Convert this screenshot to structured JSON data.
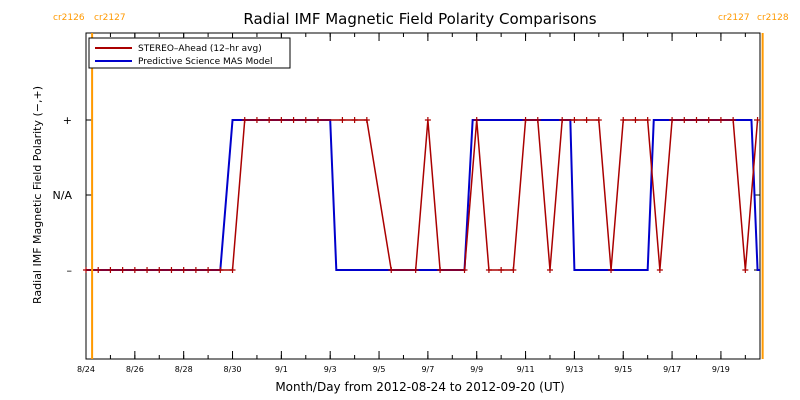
{
  "chart_data": {
    "type": "line",
    "title": "Radial IMF Magnetic Field Polarity Comparisons",
    "xlabel": "Month/Day from 2012-08-24 to 2012-09-20 (UT)",
    "ylabel": "Radial IMF Magnetic Field Polarity (−,+)",
    "xlim": [
      "2012-08-24",
      "2012-09-20"
    ],
    "ylim": [
      -2,
      2
    ],
    "x_tick_labels": [
      {
        "x": "2012-08-24",
        "label": "8/24"
      },
      {
        "x": "2012-08-26",
        "label": "8/26"
      },
      {
        "x": "2012-08-28",
        "label": "8/28"
      },
      {
        "x": "2012-08-30",
        "label": "8/30"
      },
      {
        "x": "2012-09-01",
        "label": "9/1"
      },
      {
        "x": "2012-09-03",
        "label": "9/3"
      },
      {
        "x": "2012-09-05",
        "label": "9/5"
      },
      {
        "x": "2012-09-07",
        "label": "9/7"
      },
      {
        "x": "2012-09-09",
        "label": "9/9"
      },
      {
        "x": "2012-09-11",
        "label": "9/11"
      },
      {
        "x": "2012-09-13",
        "label": "9/13"
      },
      {
        "x": "2012-09-15",
        "label": "9/15"
      },
      {
        "x": "2012-09-17",
        "label": "9/17"
      },
      {
        "x": "2012-09-19",
        "label": "9/19"
      }
    ],
    "y_tick_labels": [
      {
        "y": 1,
        "label": "+"
      },
      {
        "y": 0,
        "label": "N/A"
      },
      {
        "y": -1,
        "label": "–"
      }
    ],
    "legend_position": "top-left",
    "carrington_markers": [
      {
        "x": "2012-08-24T06:00",
        "left_label": "cr2126",
        "right_label": "cr2127",
        "color": "#ff9900"
      },
      {
        "x": "2012-09-20T17:00",
        "left_label": "cr2127",
        "right_label": "cr2128",
        "color": "#ff9900"
      }
    ],
    "series": [
      {
        "name": "STEREO–Ahead (12–hr avg)",
        "color": "#aa0000",
        "markers": "plus",
        "points": [
          [
            "2012-08-24T00:00",
            -1
          ],
          [
            "2012-08-24T12:00",
            -1
          ],
          [
            "2012-08-25T00:00",
            -1
          ],
          [
            "2012-08-25T12:00",
            -1
          ],
          [
            "2012-08-26T00:00",
            -1
          ],
          [
            "2012-08-26T12:00",
            -1
          ],
          [
            "2012-08-27T00:00",
            -1
          ],
          [
            "2012-08-27T12:00",
            -1
          ],
          [
            "2012-08-28T00:00",
            -1
          ],
          [
            "2012-08-28T12:00",
            -1
          ],
          [
            "2012-08-29T00:00",
            -1
          ],
          [
            "2012-08-29T12:00",
            -1
          ],
          [
            "2012-08-30T00:00",
            -1
          ],
          [
            "2012-08-30T12:00",
            1
          ],
          [
            "2012-08-31T00:00",
            1
          ],
          [
            "2012-08-31T12:00",
            1
          ],
          [
            "2012-09-01T00:00",
            1
          ],
          [
            "2012-09-01T12:00",
            1
          ],
          [
            "2012-09-02T00:00",
            1
          ],
          [
            "2012-09-02T12:00",
            1
          ],
          [
            "2012-09-03T12:00",
            1
          ],
          [
            "2012-09-04T00:00",
            1
          ],
          [
            "2012-09-04T12:00",
            1
          ],
          [
            "2012-09-05T12:00",
            -1
          ],
          [
            "2012-09-06T12:00",
            -1
          ],
          [
            "2012-09-07T00:00",
            1
          ],
          [
            "2012-09-07T12:00",
            -1
          ],
          [
            "2012-09-08T12:00",
            -1
          ],
          [
            "2012-09-09T00:00",
            1
          ],
          [
            "2012-09-09T12:00",
            -1
          ],
          [
            "2012-09-10T00:00",
            -1
          ],
          [
            "2012-09-10T12:00",
            -1
          ],
          [
            "2012-09-11T00:00",
            1
          ],
          [
            "2012-09-11T12:00",
            1
          ],
          [
            "2012-09-12T00:00",
            -1
          ],
          [
            "2012-09-12T12:00",
            1
          ],
          [
            "2012-09-13T00:00",
            1
          ],
          [
            "2012-09-13T12:00",
            1
          ],
          [
            "2012-09-14T00:00",
            1
          ],
          [
            "2012-09-14T12:00",
            -1
          ],
          [
            "2012-09-15T00:00",
            1
          ],
          [
            "2012-09-15T12:00",
            1
          ],
          [
            "2012-09-16T00:00",
            1
          ],
          [
            "2012-09-16T12:00",
            -1
          ],
          [
            "2012-09-17T00:00",
            1
          ],
          [
            "2012-09-17T12:00",
            1
          ],
          [
            "2012-09-18T00:00",
            1
          ],
          [
            "2012-09-18T12:00",
            1
          ],
          [
            "2012-09-19T00:00",
            1
          ],
          [
            "2012-09-19T12:00",
            1
          ],
          [
            "2012-09-20T00:00",
            -1
          ],
          [
            "2012-09-20T12:00",
            1
          ]
        ]
      },
      {
        "name": "Predictive Science MAS Model",
        "color": "#0000cc",
        "markers": "none",
        "points": [
          [
            "2012-08-24T00:00",
            -1
          ],
          [
            "2012-08-29T12:00",
            -1
          ],
          [
            "2012-08-30T00:00",
            1
          ],
          [
            "2012-09-03T00:00",
            1
          ],
          [
            "2012-09-03T06:00",
            -1
          ],
          [
            "2012-09-08T12:00",
            -1
          ],
          [
            "2012-09-08T20:00",
            1
          ],
          [
            "2012-09-12T20:00",
            1
          ],
          [
            "2012-09-13T00:00",
            -1
          ],
          [
            "2012-09-16T00:00",
            -1
          ],
          [
            "2012-09-16T06:00",
            1
          ],
          [
            "2012-09-20T06:00",
            1
          ],
          [
            "2012-09-20T12:00",
            -1
          ],
          [
            "2012-09-21T00:00",
            -1
          ]
        ]
      }
    ]
  }
}
